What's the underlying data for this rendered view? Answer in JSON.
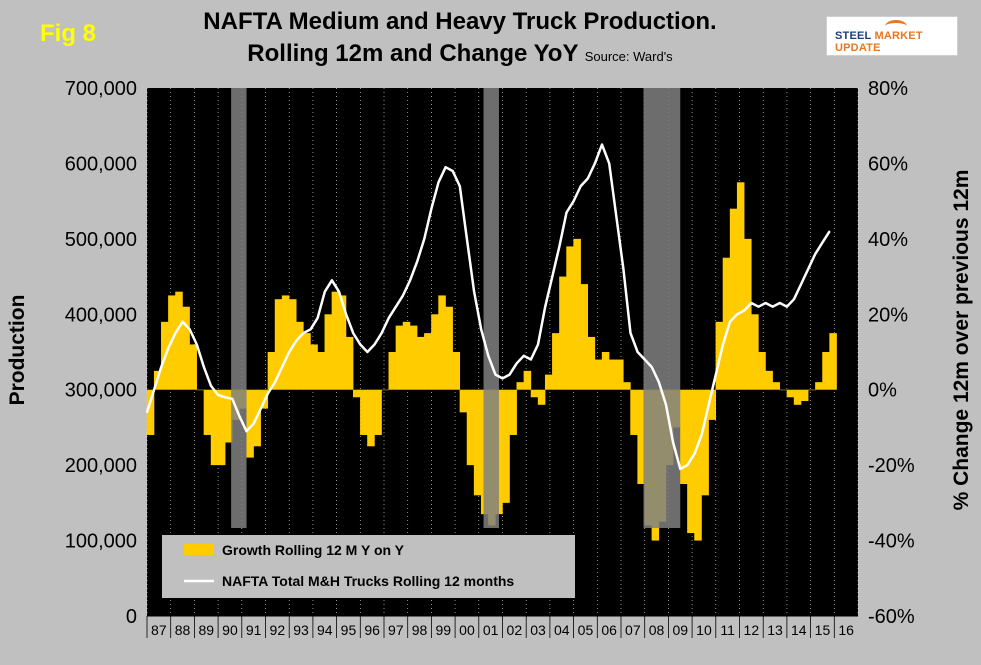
{
  "fig_label": "Fig 8",
  "title_line1": "NAFTA Medium and Heavy Truck Production.",
  "title_line2": "Rolling 12m and Change YoY",
  "source": "Source: Ward's",
  "logo_text_a": "STEEL ",
  "logo_text_b": "MARKET UPDATE",
  "colors": {
    "plot_bg": "#000000",
    "growth_fill": "#ffcc00",
    "line": "#ffffff",
    "recession_shade": "#808080",
    "page_bg": "#c0c0c0"
  },
  "chart_data": {
    "type": "bar+line",
    "title": "NAFTA Medium and Heavy Truck Production. Rolling 12m and Change YoY",
    "ylabel_left": "Production",
    "ylabel_right": "% Change 12m over previous 12m",
    "ylim_left": [
      0,
      700000
    ],
    "ylim_right": [
      -60,
      80
    ],
    "left_ticks": [
      "700,000",
      "600,000",
      "500,000",
      "400,000",
      "300,000",
      "200,000",
      "100,000",
      "0"
    ],
    "right_ticks": [
      "80%",
      "60%",
      "40%",
      "20%",
      "0%",
      "-20%",
      "-40%",
      "-60%"
    ],
    "x_ticks": [
      "87",
      "88",
      "89",
      "90",
      "91",
      "92",
      "93",
      "94",
      "95",
      "96",
      "97",
      "98",
      "99",
      "00",
      "01",
      "02",
      "03",
      "04",
      "05",
      "06",
      "07",
      "08",
      "09",
      "10",
      "11",
      "12",
      "13",
      "14",
      "15",
      "16"
    ],
    "x_start_year": 1987,
    "x_end_year": 2017,
    "recessions": [
      {
        "start": 1990.55,
        "end": 1991.2
      },
      {
        "start": 2001.2,
        "end": 2001.85
      },
      {
        "start": 2007.95,
        "end": 2009.5
      }
    ],
    "legend": [
      {
        "label": "Growth Rolling 12 M Y on Y",
        "kind": "area"
      },
      {
        "label": "NAFTA Total M&H Trucks Rolling 12 months",
        "kind": "line"
      }
    ],
    "growth_series": {
      "name": "Growth Rolling 12 M Y on Y",
      "x": [
        1987.0,
        1987.3,
        1987.6,
        1987.9,
        1988.2,
        1988.5,
        1988.8,
        1989.1,
        1989.4,
        1989.7,
        1990.0,
        1990.3,
        1990.6,
        1990.9,
        1991.2,
        1991.5,
        1991.8,
        1992.1,
        1992.4,
        1992.7,
        1993.0,
        1993.3,
        1993.6,
        1993.9,
        1994.2,
        1994.5,
        1994.8,
        1995.1,
        1995.4,
        1995.7,
        1996.0,
        1996.3,
        1996.6,
        1996.9,
        1997.2,
        1997.5,
        1997.8,
        1998.1,
        1998.4,
        1998.7,
        1999.0,
        1999.3,
        1999.6,
        1999.9,
        2000.2,
        2000.5,
        2000.8,
        2001.1,
        2001.4,
        2001.7,
        2002.0,
        2002.3,
        2002.6,
        2002.9,
        2003.2,
        2003.5,
        2003.8,
        2004.1,
        2004.4,
        2004.7,
        2005.0,
        2005.3,
        2005.6,
        2005.9,
        2006.2,
        2006.5,
        2006.8,
        2007.1,
        2007.4,
        2007.7,
        2008.0,
        2008.3,
        2008.6,
        2008.9,
        2009.2,
        2009.5,
        2009.8,
        2010.1,
        2010.4,
        2010.7,
        2011.0,
        2011.3,
        2011.6,
        2011.9,
        2012.2,
        2012.5,
        2012.8,
        2013.1,
        2013.4,
        2013.7,
        2014.0,
        2014.3,
        2014.6,
        2014.9,
        2015.2,
        2015.5,
        2015.8
      ],
      "values": [
        -12,
        5,
        18,
        25,
        26,
        22,
        12,
        0,
        -12,
        -20,
        -20,
        -14,
        -8,
        -5,
        -18,
        -15,
        -5,
        10,
        24,
        25,
        24,
        18,
        15,
        12,
        10,
        20,
        26,
        25,
        14,
        -2,
        -12,
        -15,
        -12,
        0,
        10,
        17,
        18,
        17,
        14,
        15,
        20,
        25,
        22,
        10,
        -6,
        -20,
        -28,
        -33,
        -36,
        -33,
        -30,
        -12,
        2,
        5,
        -2,
        -4,
        4,
        15,
        30,
        38,
        40,
        28,
        14,
        8,
        10,
        8,
        8,
        2,
        -12,
        -25,
        -36,
        -40,
        -35,
        -20,
        -10,
        -25,
        -38,
        -40,
        -28,
        -8,
        18,
        35,
        48,
        55,
        40,
        20,
        10,
        5,
        2,
        0,
        -2,
        -4,
        -3,
        0,
        2,
        10,
        15
      ]
    },
    "production_series": {
      "name": "NAFTA Total M&H Trucks Rolling 12 months",
      "x": [
        1987.0,
        1987.3,
        1987.6,
        1987.9,
        1988.2,
        1988.5,
        1988.8,
        1989.1,
        1989.4,
        1989.7,
        1990.0,
        1990.3,
        1990.6,
        1990.9,
        1991.2,
        1991.5,
        1991.8,
        1992.1,
        1992.4,
        1992.7,
        1993.0,
        1993.3,
        1993.6,
        1993.9,
        1994.2,
        1994.5,
        1994.8,
        1995.1,
        1995.4,
        1995.7,
        1996.0,
        1996.3,
        1996.6,
        1996.9,
        1997.2,
        1997.5,
        1997.8,
        1998.1,
        1998.4,
        1998.7,
        1999.0,
        1999.3,
        1999.6,
        1999.9,
        2000.2,
        2000.5,
        2000.8,
        2001.1,
        2001.4,
        2001.7,
        2002.0,
        2002.3,
        2002.6,
        2002.9,
        2003.2,
        2003.5,
        2003.8,
        2004.1,
        2004.4,
        2004.7,
        2005.0,
        2005.3,
        2005.6,
        2005.9,
        2006.2,
        2006.5,
        2006.8,
        2007.1,
        2007.4,
        2007.7,
        2008.0,
        2008.3,
        2008.6,
        2008.9,
        2009.2,
        2009.5,
        2009.8,
        2010.1,
        2010.4,
        2010.7,
        2011.0,
        2011.3,
        2011.6,
        2011.9,
        2012.2,
        2012.5,
        2012.8,
        2013.1,
        2013.4,
        2013.7,
        2014.0,
        2014.3,
        2014.6,
        2014.9,
        2015.2,
        2015.5,
        2015.8
      ],
      "values": [
        270000,
        300000,
        330000,
        355000,
        375000,
        390000,
        380000,
        360000,
        330000,
        305000,
        293000,
        290000,
        288000,
        265000,
        245000,
        255000,
        275000,
        295000,
        310000,
        330000,
        350000,
        365000,
        375000,
        380000,
        395000,
        430000,
        445000,
        430000,
        400000,
        375000,
        360000,
        350000,
        360000,
        375000,
        395000,
        410000,
        425000,
        445000,
        470000,
        500000,
        540000,
        575000,
        595000,
        590000,
        570000,
        500000,
        430000,
        380000,
        345000,
        320000,
        315000,
        320000,
        335000,
        345000,
        340000,
        360000,
        410000,
        450000,
        490000,
        535000,
        550000,
        570000,
        580000,
        600000,
        625000,
        600000,
        530000,
        460000,
        375000,
        350000,
        340000,
        330000,
        310000,
        280000,
        230000,
        195000,
        200000,
        215000,
        240000,
        280000,
        320000,
        360000,
        390000,
        400000,
        405000,
        415000,
        410000,
        415000,
        410000,
        415000,
        410000,
        420000,
        440000,
        460000,
        480000,
        495000,
        510000
      ]
    }
  }
}
